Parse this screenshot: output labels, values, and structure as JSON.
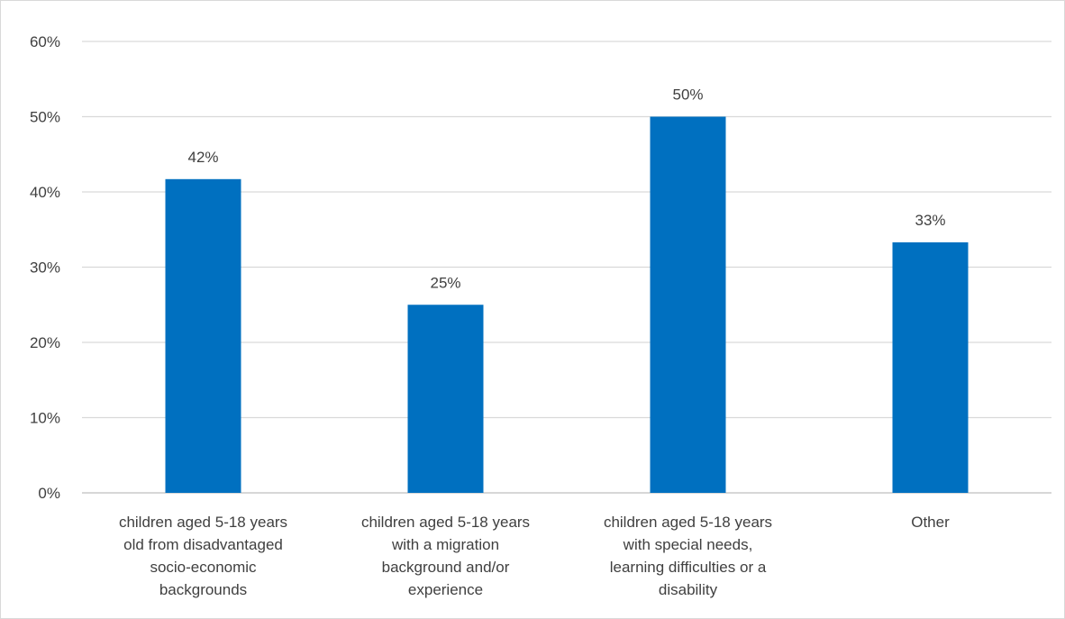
{
  "chart_data": {
    "type": "bar",
    "title": "",
    "xlabel": "",
    "ylabel": "",
    "ylim": [
      0,
      60
    ],
    "yticks": [
      "0%",
      "10%",
      "20%",
      "30%",
      "40%",
      "50%",
      "60%"
    ],
    "grid": true,
    "legend": "none",
    "categories": [
      [
        "children aged 5-18 years",
        "old from disadvantaged",
        "socio-economic",
        "backgrounds"
      ],
      [
        "children aged 5-18 years",
        "with a migration",
        "background and/or",
        "experience"
      ],
      [
        "children aged 5-18 years",
        "with special needs,",
        "learning difficulties or a",
        "disability"
      ],
      [
        "Other"
      ]
    ],
    "values": [
      41.7,
      25,
      50,
      33.3
    ],
    "data_labels": [
      "42%",
      "25%",
      "50%",
      "33%"
    ],
    "colors": {
      "bar": "#0070c0",
      "grid": "#d9d9d9",
      "axis": "#bfbfbf",
      "text": "#404040"
    }
  }
}
